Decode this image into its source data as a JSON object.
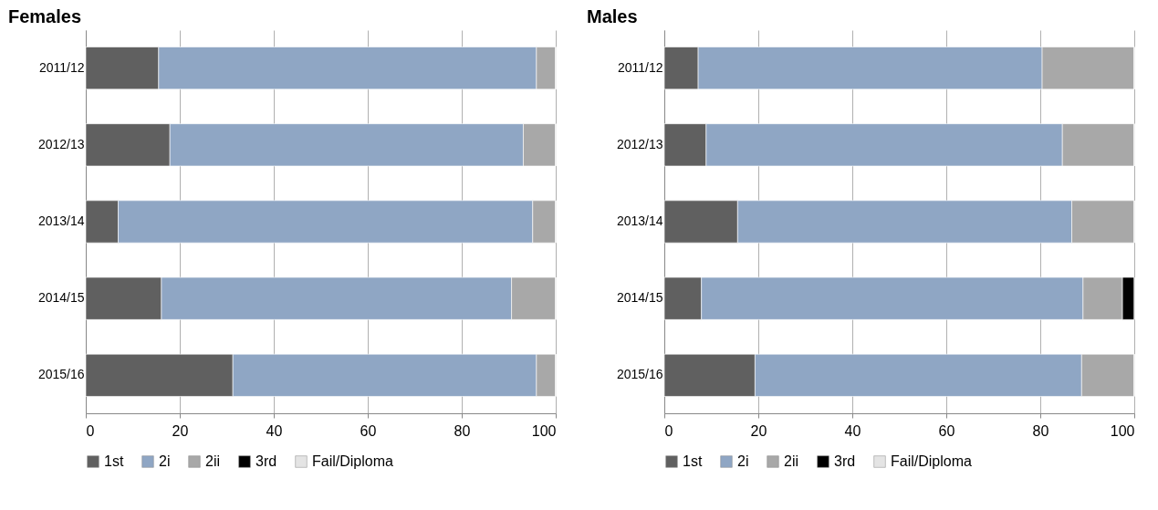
{
  "chart_data": [
    {
      "type": "bar",
      "orientation": "horizontal",
      "stacked": true,
      "title": "Females",
      "categories": [
        "2011/12",
        "2012/13",
        "2013/14",
        "2014/15",
        "2015/16"
      ],
      "series": [
        {
          "name": "1st",
          "color": "#606060",
          "values": [
            15.5,
            17.9,
            6.9,
            16.1,
            31.3
          ]
        },
        {
          "name": "2i",
          "color": "#8fa6c4",
          "values": [
            80.4,
            75.2,
            88.2,
            74.5,
            64.6
          ]
        },
        {
          "name": "2ii",
          "color": "#a8a8a8",
          "values": [
            4.1,
            6.9,
            4.9,
            9.4,
            4.1
          ]
        },
        {
          "name": "3rd",
          "color": "#000000",
          "values": [
            0,
            0,
            0,
            0,
            0
          ]
        },
        {
          "name": "Fail/Diploma",
          "color": "#e4e4e4",
          "values": [
            0,
            0,
            0,
            0,
            0
          ]
        }
      ],
      "xlim": [
        0,
        100
      ],
      "xticks": [
        0,
        20,
        40,
        60,
        80,
        100
      ],
      "grid": "x",
      "legend": "bottom"
    },
    {
      "type": "bar",
      "orientation": "horizontal",
      "stacked": true,
      "title": "Males",
      "categories": [
        "2011/12",
        "2012/13",
        "2013/14",
        "2014/15",
        "2015/16"
      ],
      "series": [
        {
          "name": "1st",
          "color": "#606060",
          "values": [
            7.2,
            8.9,
            15.6,
            7.9,
            19.3
          ]
        },
        {
          "name": "2i",
          "color": "#8fa6c4",
          "values": [
            73.2,
            75.8,
            71.1,
            81.2,
            69.5
          ]
        },
        {
          "name": "2ii",
          "color": "#a8a8a8",
          "values": [
            19.6,
            15.3,
            13.3,
            8.4,
            11.2
          ]
        },
        {
          "name": "3rd",
          "color": "#000000",
          "values": [
            0,
            0,
            0,
            2.5,
            0
          ]
        },
        {
          "name": "Fail/Diploma",
          "color": "#e4e4e4",
          "values": [
            0,
            0,
            0,
            0,
            0
          ]
        }
      ],
      "xlim": [
        0,
        100
      ],
      "xticks": [
        0,
        20,
        40,
        60,
        80,
        100
      ],
      "grid": "x",
      "legend": "bottom"
    }
  ]
}
